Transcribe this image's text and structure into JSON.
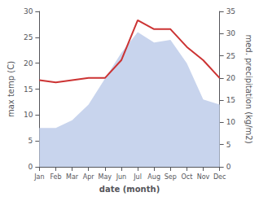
{
  "chart_data": {
    "type": "line",
    "xlabel": "date (month)",
    "ylabel": "max temp (C)",
    "y2label": "med. precipitation (kg/m2)",
    "categories": [
      "Jan",
      "Feb",
      "Mar",
      "Apr",
      "May",
      "Jun",
      "Jul",
      "Aug",
      "Sep",
      "Oct",
      "Nov",
      "Dec"
    ],
    "series": [
      {
        "type": "area",
        "color": "#c8d4ed",
        "values": [
          7.5,
          7.5,
          9.0,
          12.0,
          17.0,
          22.0,
          26.0,
          24.0,
          24.5,
          20.0,
          13.0,
          12.0
        ]
      },
      {
        "type": "line",
        "color": "#cc3333",
        "axis": "y2",
        "values": [
          19.5,
          19.0,
          19.5,
          20.0,
          20.0,
          24.0,
          33.0,
          31.0,
          31.0,
          27.0,
          24.0,
          20.0
        ]
      }
    ],
    "ylim": [
      0,
      30
    ],
    "yticks": [
      0,
      5,
      10,
      15,
      20,
      25,
      30
    ],
    "y2lim": [
      0,
      35
    ],
    "y2ticks": [
      0,
      5,
      10,
      15,
      20,
      25,
      30,
      35
    ],
    "grid": false
  }
}
